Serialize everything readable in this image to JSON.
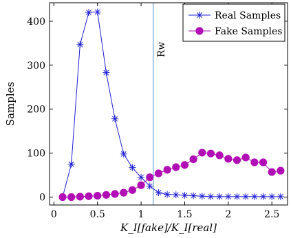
{
  "chart_data": {
    "type": "line",
    "xlabel": "K_I[fake]/K_I[real]",
    "ylabel": "Samples",
    "xlim": [
      -0.05,
      2.68
    ],
    "ylim": [
      -18,
      442
    ],
    "xticks": [
      0,
      0.5,
      1,
      1.5,
      2,
      2.5
    ],
    "xtick_labels": [
      "0",
      "0.5",
      "1",
      "1.5",
      "2",
      "2.5"
    ],
    "yticks": [
      0,
      100,
      200,
      300,
      400
    ],
    "ytick_labels": [
      "0",
      "100",
      "200",
      "300",
      "400"
    ],
    "grid": false,
    "legend_position": "top-right",
    "annotations": [
      {
        "type": "vline",
        "x": 1.14,
        "label": "Rw",
        "color": "#4a8fc6"
      }
    ],
    "series": [
      {
        "name": "Real Samples",
        "color": "#1f1fd6",
        "marker": "asterisk",
        "x": [
          0.1,
          0.2,
          0.3,
          0.4,
          0.5,
          0.6,
          0.7,
          0.8,
          0.9,
          1.0,
          1.1,
          1.2,
          1.3,
          1.4,
          1.5,
          1.6,
          1.7,
          1.8,
          1.9,
          2.0,
          2.1,
          2.2,
          2.3,
          2.4,
          2.5,
          2.6
        ],
        "values": [
          0,
          75,
          347,
          420,
          421,
          283,
          178,
          98,
          67,
          45,
          25,
          10,
          6,
          5,
          4,
          3,
          2,
          1,
          1,
          1,
          1,
          1,
          1,
          1,
          1,
          1
        ]
      },
      {
        "name": "Fake Samples",
        "color": "#b10eb5",
        "marker": "circle",
        "x": [
          0.1,
          0.2,
          0.3,
          0.4,
          0.5,
          0.6,
          0.7,
          0.8,
          0.9,
          1.0,
          1.1,
          1.2,
          1.3,
          1.4,
          1.5,
          1.6,
          1.7,
          1.8,
          1.9,
          2.0,
          2.1,
          2.2,
          2.3,
          2.4,
          2.5,
          2.6
        ],
        "values": [
          0,
          0,
          1,
          2,
          3,
          5,
          7,
          10,
          16,
          27,
          45,
          54,
          62,
          68,
          73,
          86,
          101,
          99,
          95,
          87,
          84,
          90,
          79,
          79,
          57,
          60
        ]
      }
    ]
  }
}
